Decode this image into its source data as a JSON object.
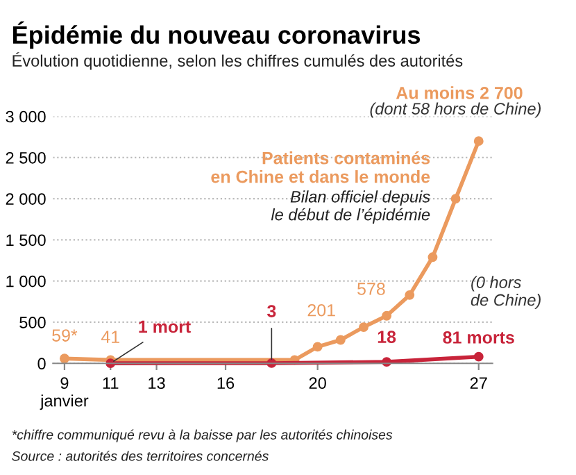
{
  "chart_data": {
    "type": "line",
    "title": "Épidémie du nouveau coronavirus",
    "subtitle": "Évolution quotidienne, selon les chiffres cumulés des autorités",
    "series": [
      {
        "name": "Patients contaminés\nen Chine et dans le monde",
        "color": "#eb9a5e",
        "x": [
          9,
          11,
          19,
          20,
          21,
          22,
          23,
          24,
          25,
          26,
          27
        ],
        "values": [
          59,
          41,
          41,
          201,
          285,
          440,
          578,
          830,
          1290,
          2000,
          2700
        ],
        "value_labels": [
          "59*",
          "41",
          null,
          "201",
          null,
          null,
          "578",
          null,
          null,
          null,
          "Au moins 2 700"
        ]
      },
      {
        "color": "#c8243a",
        "x": [
          11,
          18,
          23,
          27
        ],
        "values": [
          1,
          3,
          18,
          81
        ],
        "value_labels": [
          "1 mort",
          "3",
          "18",
          "81 morts"
        ]
      }
    ],
    "xlim": [
      8.5,
      27.6
    ],
    "xticks": [
      {
        "value": 9,
        "label": "9\njanvier"
      },
      11,
      13,
      16,
      20,
      27
    ],
    "ylim": [
      0,
      3000
    ],
    "yticks": [
      0,
      500,
      {
        "value": 1000,
        "label": "1 000"
      },
      {
        "value": 1500,
        "label": "1 500"
      },
      {
        "value": 2000,
        "label": "2 000"
      },
      {
        "value": 2500,
        "label": "2 500"
      },
      {
        "value": 3000,
        "label": "3 000"
      }
    ],
    "grid": "y",
    "legend": false,
    "marker": "circle",
    "line_style": "solid",
    "annotations": [
      {
        "text": "(dont 58 hors de Chine)",
        "x": 27,
        "y": 2700
      },
      "Bilan officiel depuis\nle début de l’épidémie",
      "(0 hors\nde Chine)",
      "*chiffre communiqué revu à la baisse par les autorités chinoises",
      "Source : autorités des territoires concernés"
    ]
  }
}
